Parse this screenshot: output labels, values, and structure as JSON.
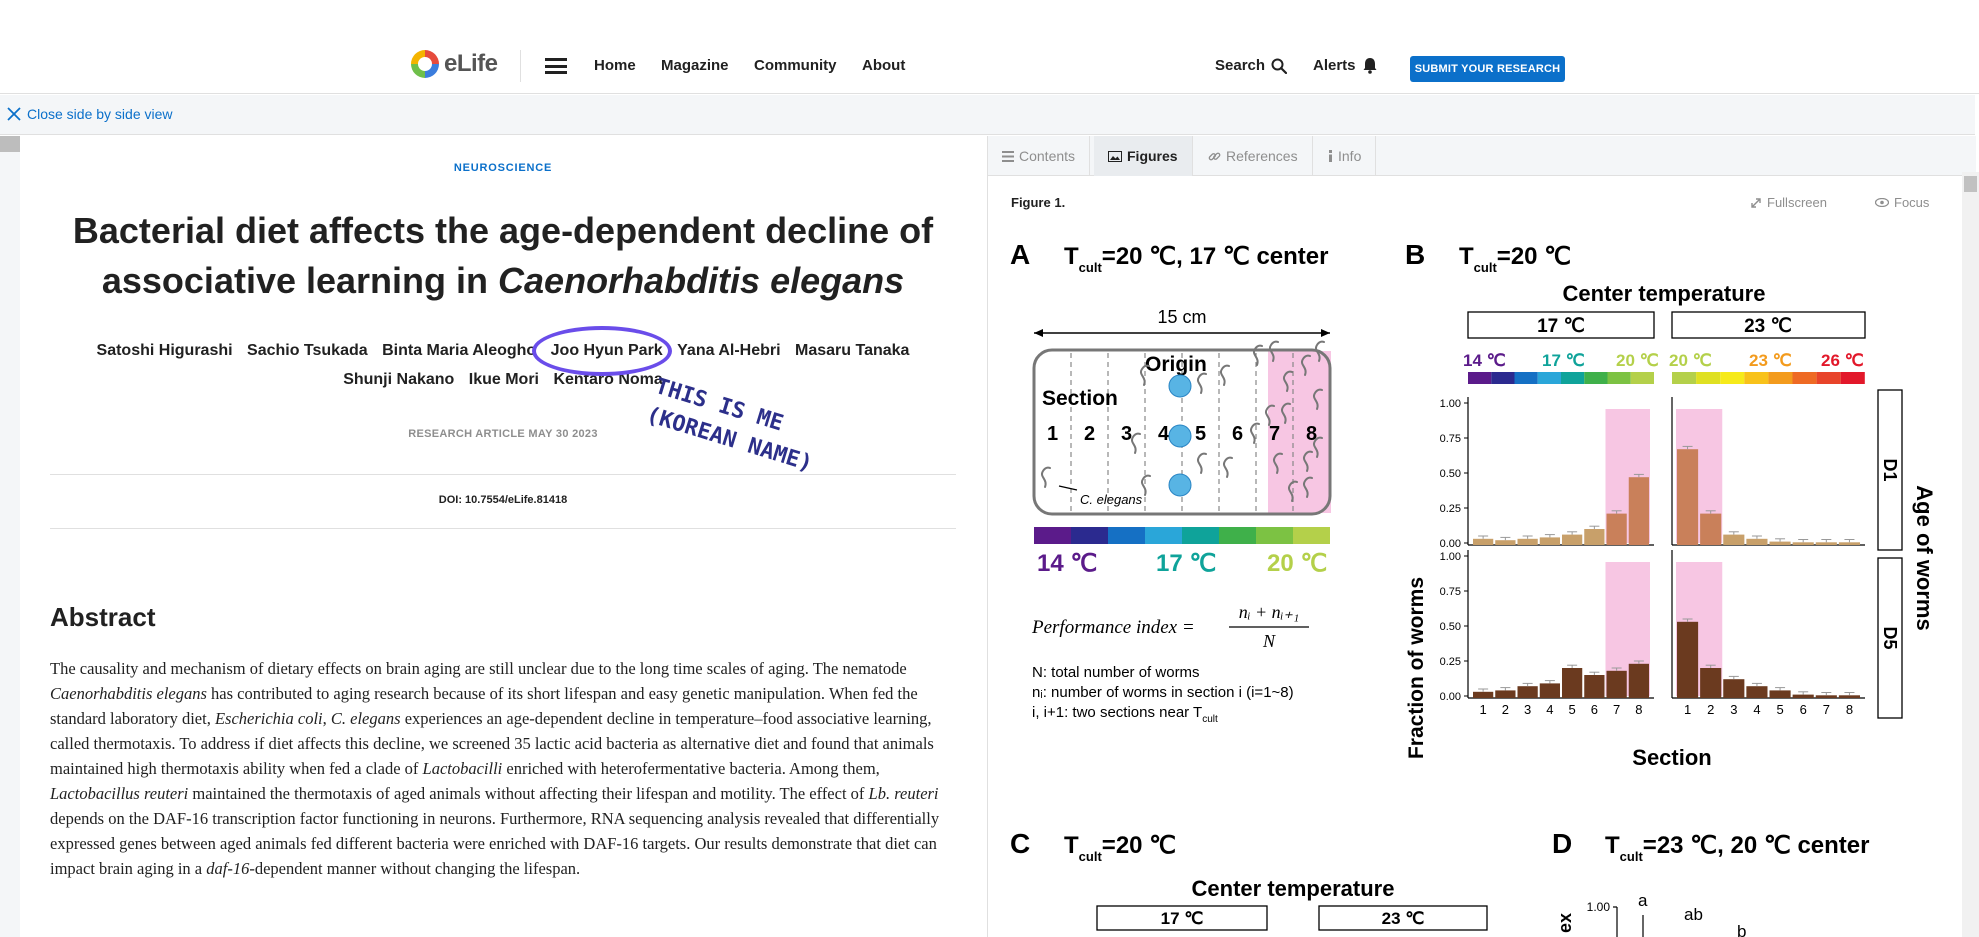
{
  "nav": {
    "logo_text": "eLife",
    "home": "Home",
    "magazine": "Magazine",
    "community": "Community",
    "about": "About",
    "search": "Search",
    "alerts": "Alerts",
    "submit": "SUBMIT YOUR RESEARCH"
  },
  "closebar": {
    "label": "Close side by side view"
  },
  "article": {
    "subject": "NEUROSCIENCE",
    "title_line1": "Bacterial diet affects the age-dependent decline of",
    "title_line2_plain": "associative learning in ",
    "title_line2_italic": "Caenorhabditis elegans",
    "authors": [
      "Satoshi Higurashi",
      "Sachio Tsukada",
      "Binta Maria Aleogho",
      "Joo Hyun Park",
      "Yana Al-Hebri",
      "Masaru Tanaka",
      "Shunji Nakano",
      "Ikue Mori",
      "Kentaro Noma"
    ],
    "meta": "RESEARCH ARTICLE MAY 30 2023",
    "doi": "DOI: 10.7554/eLife.81418",
    "abstract_heading": "Abstract",
    "abstract": [
      {
        "t": "The causality and mechanism of dietary effects on brain aging are still unclear due to the long time scales of aging. The nematode "
      },
      {
        "t": "Caenorhabditis elegans",
        "i": true
      },
      {
        "t": " has contributed to aging research because of its short lifespan and easy genetic manipulation. When fed the standard laboratory diet, "
      },
      {
        "t": "Escherichia coli",
        "i": true
      },
      {
        "t": ", "
      },
      {
        "t": "C. elegans",
        "i": true
      },
      {
        "t": " experiences an age-dependent decline in temperature–food associative learning, called thermotaxis. To address if diet affects this decline, we screened 35 lactic acid bacteria as alternative diet and found that animals maintained high thermotaxis ability when fed a clade of "
      },
      {
        "t": "Lactobacilli",
        "i": true
      },
      {
        "t": " enriched with heterofermentative bacteria. Among them, "
      },
      {
        "t": "Lactobacillus reuteri",
        "i": true
      },
      {
        "t": " maintained the thermotaxis of aged animals without affecting their lifespan and motility. The effect of "
      },
      {
        "t": "Lb. reuteri",
        "i": true
      },
      {
        "t": " depends on the DAF-16 transcription factor functioning in neurons. Furthermore, RNA sequencing analysis revealed that differentially expressed genes between aged animals fed different bacteria were enriched with DAF-16 targets. Our results demonstrate that diet can impact brain aging in a "
      },
      {
        "t": "daf-16",
        "i": true
      },
      {
        "t": "-dependent manner without changing the lifespan."
      }
    ],
    "annotation": [
      "THIS IS ME",
      "(KOREAN NAME)"
    ]
  },
  "figure_pane": {
    "tabs": [
      "Contents",
      "Figures",
      "References",
      "Info"
    ],
    "active_tab": "Figures",
    "figure_label": "Figure 1.",
    "fullscreen": "Fullscreen",
    "focus": "Focus"
  },
  "figure": {
    "panelA": {
      "letter": "A",
      "heading_pre": "T",
      "heading_sub": "cult",
      "heading_post": "=20 ℃, 17 ℃ center",
      "scale": "15 cm",
      "origin": "Origin",
      "section": "Section",
      "sections": [
        "1",
        "2",
        "3",
        "4",
        "5",
        "6",
        "7",
        "8"
      ],
      "worm_label": "C. elegans",
      "temp_labels": [
        "14 ℃",
        "17 ℃",
        "20 ℃"
      ],
      "pi_label": "Performance index =",
      "pi_num": "nᵢ + nᵢ₊₁",
      "pi_den": "N",
      "notes": [
        "N: total number of worms",
        "nᵢ: number of worms in section i (i=1~8)",
        "i, i+1: two sections near T"
      ],
      "notes_sub": "cult"
    },
    "panelB": {
      "letter": "B",
      "heading_pre": "T",
      "heading_sub": "cult",
      "heading_post": "=20 ℃",
      "center_temp": "Center temperature",
      "groups": [
        "17 ℃",
        "23 ℃"
      ],
      "temp_labels_17": [
        "14 ℃",
        "17 ℃",
        "20 ℃"
      ],
      "temp_labels_23": [
        "20 ℃",
        "23 ℃",
        "26 ℃"
      ],
      "ylabel": "Fraction of worms",
      "xlabel": "Section",
      "age_label": "Age of worms",
      "rows": [
        "D1",
        "D5"
      ],
      "yticks": [
        "0.00",
        "0.25",
        "0.50",
        "0.75",
        "1.00"
      ]
    },
    "panelC": {
      "letter": "C",
      "heading_pre": "T",
      "heading_sub": "cult",
      "heading_post": "=20 ℃",
      "center_temp": "Center temperature",
      "groups": [
        "17 ℃",
        "23 ℃"
      ]
    },
    "panelD": {
      "letter": "D",
      "heading_pre": "T",
      "heading_sub": "cult",
      "heading_post": "=23 ℃, 20 ℃ center",
      "ytick": "1.00",
      "ylabel_partial": "ex",
      "letters": [
        "a",
        "ab",
        "b"
      ]
    }
  },
  "chart_data": [
    {
      "type": "bar",
      "title": "D1, 17 ℃ center",
      "categories": [
        "1",
        "2",
        "3",
        "4",
        "5",
        "6",
        "7",
        "8"
      ],
      "values": [
        0.03,
        0.02,
        0.03,
        0.04,
        0.06,
        0.1,
        0.21,
        0.47
      ],
      "ylim": [
        0,
        1
      ],
      "xlabel": "Section",
      "ylabel": "Fraction of worms"
    },
    {
      "type": "bar",
      "title": "D1, 23 ℃ center",
      "categories": [
        "1",
        "2",
        "3",
        "4",
        "5",
        "6",
        "7",
        "8"
      ],
      "values": [
        0.67,
        0.21,
        0.06,
        0.03,
        0.01,
        0.005,
        0.005,
        0.005
      ],
      "ylim": [
        0,
        1
      ],
      "xlabel": "Section",
      "ylabel": "Fraction of worms"
    },
    {
      "type": "bar",
      "title": "D5, 17 ℃ center",
      "categories": [
        "1",
        "2",
        "3",
        "4",
        "5",
        "6",
        "7",
        "8"
      ],
      "values": [
        0.03,
        0.04,
        0.07,
        0.09,
        0.2,
        0.15,
        0.18,
        0.23
      ],
      "ylim": [
        0,
        1
      ],
      "xlabel": "Section",
      "ylabel": "Fraction of worms"
    },
    {
      "type": "bar",
      "title": "D5, 23 ℃ center",
      "categories": [
        "1",
        "2",
        "3",
        "4",
        "5",
        "6",
        "7",
        "8"
      ],
      "values": [
        0.53,
        0.2,
        0.12,
        0.07,
        0.04,
        0.01,
        0.005,
        0.005
      ],
      "ylim": [
        0,
        1
      ],
      "xlabel": "Section",
      "ylabel": "Fraction of worms"
    }
  ],
  "colors": {
    "accent": "#0b70ca",
    "annotation_circle": "#6a4dea",
    "annotation_text": "#2c2f8a",
    "highlight_pink": "#f7c6e3",
    "bar_D1": "#c9805a",
    "bar_D1_light": "#c8a06a",
    "bar_D5": "#6b3a1f",
    "gradient_cool": [
      "#5b1b8a",
      "#2b2a8f",
      "#1570c4",
      "#2aa6d9",
      "#0fa39a",
      "#3fb04a",
      "#7cc243",
      "#b4d04a"
    ],
    "gradient_warm": [
      "#b4d04a",
      "#dfe022",
      "#f6ea1a",
      "#f8c21a",
      "#f39b1d",
      "#ee6a24",
      "#e8442a",
      "#e2182a"
    ]
  }
}
